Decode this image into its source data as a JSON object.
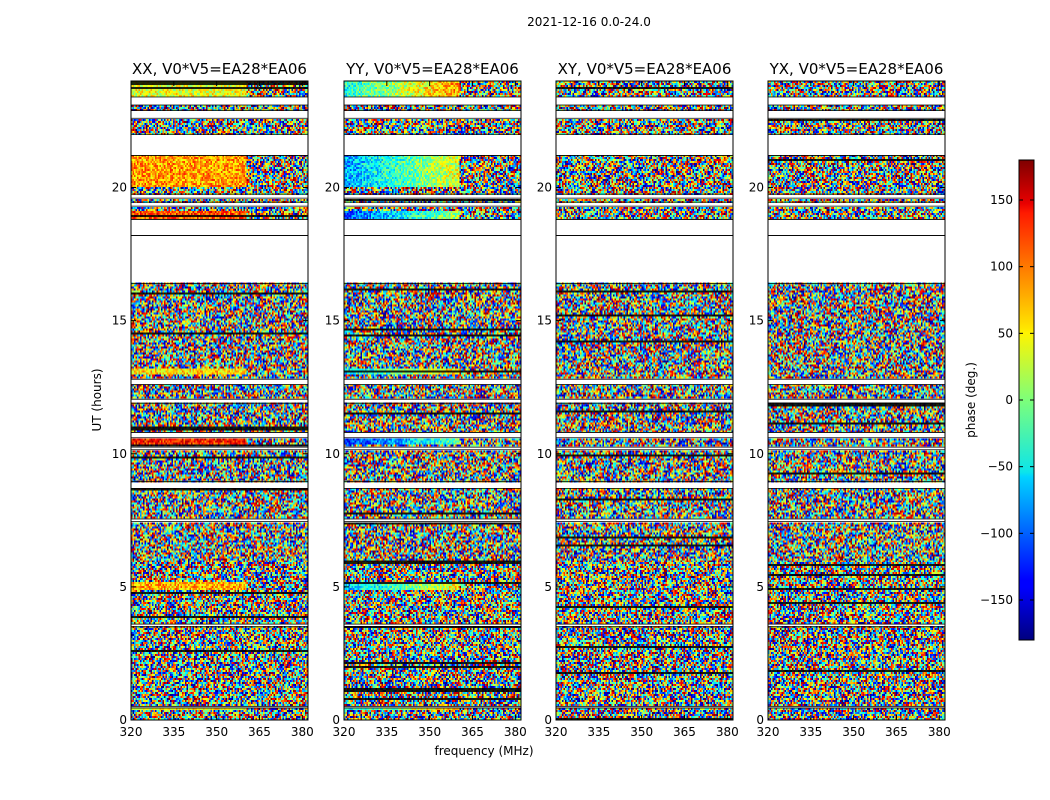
{
  "figure": {
    "suptitle": "2021-12-16 0.0-24.0",
    "xlabel": "frequency (MHz)",
    "ylabel": "UT (hours)"
  },
  "chart_data": {
    "type": "heatmap",
    "x_range_mhz": [
      320,
      382
    ],
    "y_range_hours": [
      0,
      24
    ],
    "x_ticks": [
      320,
      335,
      350,
      365,
      380
    ],
    "y_ticks": [
      0,
      5,
      10,
      15,
      20
    ],
    "baseline": "V0*V5=EA28*EA06",
    "panels": [
      {
        "polarization": "XX",
        "title": "XX, V0*V5=EA28*EA06"
      },
      {
        "polarization": "YY",
        "title": "YY, V0*V5=EA28*EA06"
      },
      {
        "polarization": "XY",
        "title": "XY, V0*V5=EA28*EA06"
      },
      {
        "polarization": "YX",
        "title": "YX, V0*V5=EA28*EA06"
      }
    ],
    "blank_time_bands_hours": [
      [
        23.1,
        23.4
      ],
      [
        22.6,
        22.9
      ],
      [
        21.2,
        22.0
      ],
      [
        19.6,
        19.75
      ],
      [
        19.3,
        19.45
      ],
      [
        18.2,
        18.8
      ],
      [
        16.4,
        18.2
      ],
      [
        12.6,
        12.8
      ],
      [
        11.9,
        12.05
      ],
      [
        10.6,
        10.8
      ],
      [
        10.15,
        10.25
      ],
      [
        8.7,
        8.95
      ],
      [
        7.45,
        7.55
      ],
      [
        3.5,
        3.6
      ],
      [
        0.45,
        0.5
      ]
    ],
    "colorbar": {
      "label": "phase (deg.)",
      "range": [
        -180,
        180
      ],
      "ticks": [
        -150,
        -100,
        -50,
        0,
        50,
        100,
        150
      ],
      "tick_labels": [
        "−150",
        "−100",
        "−50",
        "0",
        "50",
        "100",
        "150"
      ]
    }
  }
}
